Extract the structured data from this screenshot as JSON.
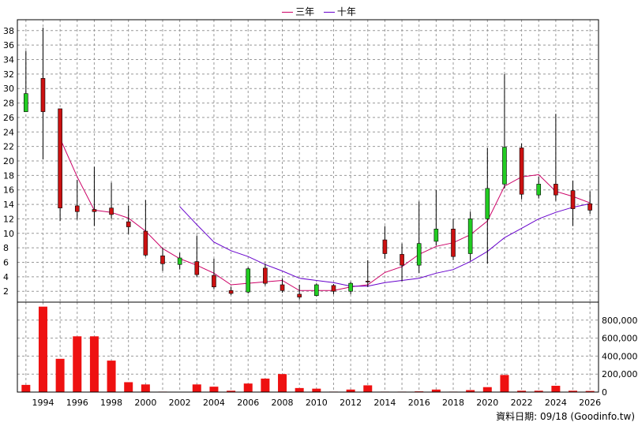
{
  "legend": [
    {
      "label": "三年",
      "color": "#cc0066"
    },
    {
      "label": "十年",
      "color": "#6600cc"
    }
  ],
  "footer": {
    "label": "資料日期:",
    "date": "09/18",
    "source": "(Goodinfo.tw)"
  },
  "colors": {
    "up": "#22cc22",
    "down": "#cc1111",
    "volume": "#ee1111",
    "grid": "#999999"
  },
  "chart_data": {
    "type": "candlestick",
    "x_ticks": [
      1994,
      1996,
      1998,
      2000,
      2002,
      2004,
      2006,
      2008,
      2010,
      2012,
      2014,
      2016,
      2018,
      2020,
      2022,
      2024,
      2026
    ],
    "price_ticks": [
      2,
      4,
      6,
      8,
      10,
      12,
      14,
      16,
      18,
      20,
      22,
      24,
      26,
      28,
      30,
      32,
      34,
      36,
      38
    ],
    "price_range": [
      0.5,
      39.5
    ],
    "volume_ticks": [
      "0",
      "200,000",
      "400,000",
      "600,000",
      "800,000"
    ],
    "volume_range": [
      0,
      1000000
    ],
    "candles": [
      {
        "year": 1993,
        "open": 26.8,
        "close": 29.3,
        "high": 35.2,
        "low": 26.8
      },
      {
        "year": 1994,
        "open": 31.4,
        "close": 26.8,
        "high": 38.4,
        "low": 20.2
      },
      {
        "year": 1995,
        "open": 27.2,
        "close": 13.5,
        "high": 27.2,
        "low": 11.7
      },
      {
        "year": 1996,
        "open": 13.8,
        "close": 13.0,
        "high": 17.4,
        "low": 11.9
      },
      {
        "year": 1997,
        "open": 13.3,
        "close": 13.0,
        "high": 19.2,
        "low": 11.0
      },
      {
        "year": 1998,
        "open": 13.5,
        "close": 12.6,
        "high": 17.0,
        "low": 12.0
      },
      {
        "year": 1999,
        "open": 11.6,
        "close": 10.9,
        "high": 13.8,
        "low": 9.9
      },
      {
        "year": 2000,
        "open": 10.3,
        "close": 7.0,
        "high": 14.6,
        "low": 6.8
      },
      {
        "year": 2001,
        "open": 6.9,
        "close": 5.8,
        "high": 8.0,
        "low": 4.8
      },
      {
        "year": 2002,
        "open": 5.7,
        "close": 6.6,
        "high": 7.3,
        "low": 5.0
      },
      {
        "year": 2003,
        "open": 6.1,
        "close": 4.3,
        "high": 9.7,
        "low": 4.0
      },
      {
        "year": 2004,
        "open": 4.2,
        "close": 2.6,
        "high": 6.5,
        "low": 2.3
      },
      {
        "year": 2005,
        "open": 2.1,
        "close": 1.7,
        "high": 2.6,
        "low": 1.5
      },
      {
        "year": 2006,
        "open": 1.9,
        "close": 5.1,
        "high": 5.3,
        "low": 1.7
      },
      {
        "year": 2007,
        "open": 5.2,
        "close": 3.1,
        "high": 5.8,
        "low": 2.8
      },
      {
        "year": 2008,
        "open": 2.9,
        "close": 2.1,
        "high": 3.8,
        "low": 1.8
      },
      {
        "year": 2009,
        "open": 1.6,
        "close": 1.2,
        "high": 2.9,
        "low": 0.9
      },
      {
        "year": 2010,
        "open": 1.4,
        "close": 2.9,
        "high": 3.1,
        "low": 1.3
      },
      {
        "year": 2011,
        "open": 2.8,
        "close": 2.0,
        "high": 3.0,
        "low": 1.6
      },
      {
        "year": 2012,
        "open": 2.0,
        "close": 3.1,
        "high": 3.3,
        "low": 1.6
      },
      {
        "year": 2013,
        "open": 3.4,
        "close": 3.3,
        "high": 6.3,
        "low": 2.6
      },
      {
        "year": 2014,
        "open": 9.1,
        "close": 7.2,
        "high": 11.0,
        "low": 6.5
      },
      {
        "year": 2015,
        "open": 7.1,
        "close": 5.6,
        "high": 8.6,
        "low": 3.4
      },
      {
        "year": 2016,
        "open": 5.6,
        "close": 8.6,
        "high": 14.4,
        "low": 4.5
      },
      {
        "year": 2017,
        "open": 8.9,
        "close": 10.6,
        "high": 16.0,
        "low": 8.3
      },
      {
        "year": 2018,
        "open": 10.6,
        "close": 6.8,
        "high": 12.0,
        "low": 6.3
      },
      {
        "year": 2019,
        "open": 7.2,
        "close": 12.0,
        "high": 13.0,
        "low": 6.2
      },
      {
        "year": 2020,
        "open": 12.0,
        "close": 16.2,
        "high": 21.8,
        "low": 5.8
      },
      {
        "year": 2021,
        "open": 16.8,
        "close": 21.9,
        "high": 32.0,
        "low": 16.2
      },
      {
        "year": 2022,
        "open": 21.8,
        "close": 15.4,
        "high": 22.4,
        "low": 14.7
      },
      {
        "year": 2023,
        "open": 15.3,
        "close": 16.8,
        "high": 17.8,
        "low": 14.8
      },
      {
        "year": 2024,
        "open": 16.8,
        "close": 15.3,
        "high": 26.5,
        "low": 14.5
      },
      {
        "year": 2025,
        "open": 15.9,
        "close": 13.4,
        "high": 17.3,
        "low": 11.0
      },
      {
        "year": 2026,
        "open": 14.1,
        "close": 13.2,
        "high": 15.8,
        "low": 12.7
      }
    ],
    "ma3": [
      {
        "year": 1995,
        "value": 23.1
      },
      {
        "year": 1996,
        "value": 17.8
      },
      {
        "year": 1997,
        "value": 13.2
      },
      {
        "year": 1998,
        "value": 12.9
      },
      {
        "year": 1999,
        "value": 12.1
      },
      {
        "year": 2000,
        "value": 10.3
      },
      {
        "year": 2001,
        "value": 7.9
      },
      {
        "year": 2002,
        "value": 6.5
      },
      {
        "year": 2003,
        "value": 5.6
      },
      {
        "year": 2004,
        "value": 4.5
      },
      {
        "year": 2005,
        "value": 2.9
      },
      {
        "year": 2006,
        "value": 3.1
      },
      {
        "year": 2007,
        "value": 3.3
      },
      {
        "year": 2008,
        "value": 3.5
      },
      {
        "year": 2009,
        "value": 2.1
      },
      {
        "year": 2010,
        "value": 2.1
      },
      {
        "year": 2011,
        "value": 2.1
      },
      {
        "year": 2012,
        "value": 2.6
      },
      {
        "year": 2013,
        "value": 2.9
      },
      {
        "year": 2014,
        "value": 4.6
      },
      {
        "year": 2015,
        "value": 5.4
      },
      {
        "year": 2016,
        "value": 7.1
      },
      {
        "year": 2017,
        "value": 8.2
      },
      {
        "year": 2018,
        "value": 8.7
      },
      {
        "year": 2019,
        "value": 9.8
      },
      {
        "year": 2020,
        "value": 11.7
      },
      {
        "year": 2021,
        "value": 16.5
      },
      {
        "year": 2022,
        "value": 17.8
      },
      {
        "year": 2023,
        "value": 18.1
      },
      {
        "year": 2024,
        "value": 15.8
      },
      {
        "year": 2025,
        "value": 15.1
      },
      {
        "year": 2026,
        "value": 14.2
      }
    ],
    "ma10": [
      {
        "year": 2002,
        "value": 13.7
      },
      {
        "year": 2003,
        "value": 11.2
      },
      {
        "year": 2004,
        "value": 8.8
      },
      {
        "year": 2005,
        "value": 7.6
      },
      {
        "year": 2006,
        "value": 6.8
      },
      {
        "year": 2007,
        "value": 5.7
      },
      {
        "year": 2008,
        "value": 4.8
      },
      {
        "year": 2009,
        "value": 3.8
      },
      {
        "year": 2010,
        "value": 3.5
      },
      {
        "year": 2011,
        "value": 3.2
      },
      {
        "year": 2012,
        "value": 2.7
      },
      {
        "year": 2013,
        "value": 2.7
      },
      {
        "year": 2014,
        "value": 3.2
      },
      {
        "year": 2015,
        "value": 3.5
      },
      {
        "year": 2016,
        "value": 3.8
      },
      {
        "year": 2017,
        "value": 4.5
      },
      {
        "year": 2018,
        "value": 5.0
      },
      {
        "year": 2019,
        "value": 6.1
      },
      {
        "year": 2020,
        "value": 7.5
      },
      {
        "year": 2021,
        "value": 9.4
      },
      {
        "year": 2022,
        "value": 10.7
      },
      {
        "year": 2023,
        "value": 12.0
      },
      {
        "year": 2024,
        "value": 12.9
      },
      {
        "year": 2025,
        "value": 13.6
      },
      {
        "year": 2026,
        "value": 14.1
      }
    ],
    "volume": [
      {
        "year": 1993,
        "value": 80000
      },
      {
        "year": 1994,
        "value": 950000
      },
      {
        "year": 1995,
        "value": 370000
      },
      {
        "year": 1996,
        "value": 620000
      },
      {
        "year": 1997,
        "value": 620000
      },
      {
        "year": 1998,
        "value": 350000
      },
      {
        "year": 1999,
        "value": 110000
      },
      {
        "year": 2000,
        "value": 85000
      },
      {
        "year": 2001,
        "value": 5000
      },
      {
        "year": 2002,
        "value": 3000
      },
      {
        "year": 2003,
        "value": 85000
      },
      {
        "year": 2004,
        "value": 60000
      },
      {
        "year": 2005,
        "value": 15000
      },
      {
        "year": 2006,
        "value": 95000
      },
      {
        "year": 2007,
        "value": 150000
      },
      {
        "year": 2008,
        "value": 200000
      },
      {
        "year": 2009,
        "value": 45000
      },
      {
        "year": 2010,
        "value": 38000
      },
      {
        "year": 2011,
        "value": 5000
      },
      {
        "year": 2012,
        "value": 28000
      },
      {
        "year": 2013,
        "value": 75000
      },
      {
        "year": 2014,
        "value": 5000
      },
      {
        "year": 2015,
        "value": 5000
      },
      {
        "year": 2016,
        "value": 8000
      },
      {
        "year": 2017,
        "value": 28000
      },
      {
        "year": 2018,
        "value": 5000
      },
      {
        "year": 2019,
        "value": 22000
      },
      {
        "year": 2020,
        "value": 55000
      },
      {
        "year": 2021,
        "value": 190000
      },
      {
        "year": 2022,
        "value": 15000
      },
      {
        "year": 2023,
        "value": 15000
      },
      {
        "year": 2024,
        "value": 70000
      },
      {
        "year": 2025,
        "value": 15000
      },
      {
        "year": 2026,
        "value": 12000
      }
    ]
  }
}
